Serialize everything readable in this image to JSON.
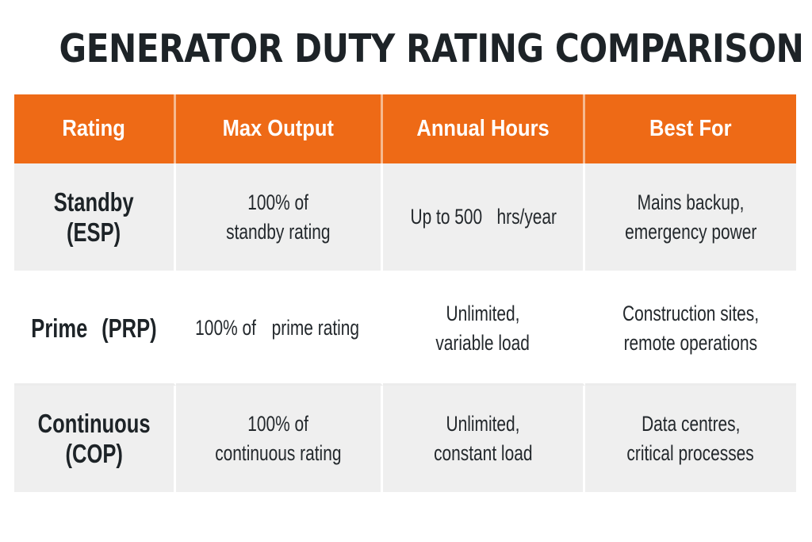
{
  "title": "GENERATOR DUTY RATING COMPARISON",
  "headers": [
    "Rating",
    "Max Output",
    "Annual Hours",
    "Best For"
  ],
  "rows": [
    {
      "rating": [
        "Standby",
        "(ESP)"
      ],
      "max_output": [
        "100% of",
        "standby rating"
      ],
      "annual_hours": [
        "Up to 500",
        "hrs/year"
      ],
      "best_for": [
        "Mains backup,",
        "emergency power"
      ]
    },
    {
      "rating": [
        "Prime",
        "(PRP)"
      ],
      "max_output": [
        "100% of",
        "prime rating"
      ],
      "annual_hours": [
        "Unlimited,",
        "variable load"
      ],
      "best_for": [
        "Construction sites,",
        "remote operations"
      ]
    },
    {
      "rating": [
        "Continuous",
        "(COP)"
      ],
      "max_output": [
        "100% of",
        "continuous rating"
      ],
      "annual_hours": [
        "Unlimited,",
        "constant load"
      ],
      "best_for": [
        "Data centres,",
        "critical processes"
      ]
    }
  ],
  "colors": {
    "header_bg": "#ee6a16",
    "header_text": "#ffffff",
    "row_shade": "#efefef",
    "row_plain": "#ffffff",
    "text": "#1d2327"
  }
}
